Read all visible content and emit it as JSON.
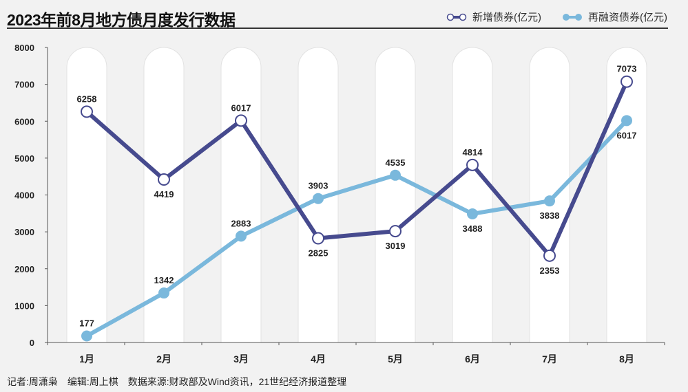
{
  "chart_data": {
    "type": "line",
    "title": "2023年前8月地方债月度发行数据",
    "categories": [
      "1月",
      "2月",
      "3月",
      "4月",
      "5月",
      "6月",
      "7月",
      "8月"
    ],
    "ylim": [
      0,
      8000
    ],
    "yticks": [
      0,
      1000,
      2000,
      3000,
      4000,
      5000,
      6000,
      7000,
      8000
    ],
    "grid": false,
    "legend_position": "top-right",
    "series": [
      {
        "name": "新增债券(亿元)",
        "color": "#464a8e",
        "marker": "hollow-circle",
        "values": [
          6258,
          4419,
          6017,
          2825,
          3019,
          4814,
          2353,
          7073
        ],
        "label_pos": [
          "above",
          "below",
          "above",
          "below",
          "below",
          "above",
          "below",
          "above"
        ]
      },
      {
        "name": "再融资债券(亿元)",
        "color": "#7ab8dc",
        "marker": "filled-circle",
        "values": [
          177,
          1342,
          2883,
          3903,
          4535,
          3488,
          3838,
          6017
        ],
        "label_pos": [
          "above",
          "above",
          "above",
          "above",
          "above",
          "below",
          "below",
          "below"
        ]
      }
    ]
  },
  "footer": "记者:周潇枭　编辑:周上棋　数据来源:财政部及Wind资讯，21世纪经济报道整理"
}
